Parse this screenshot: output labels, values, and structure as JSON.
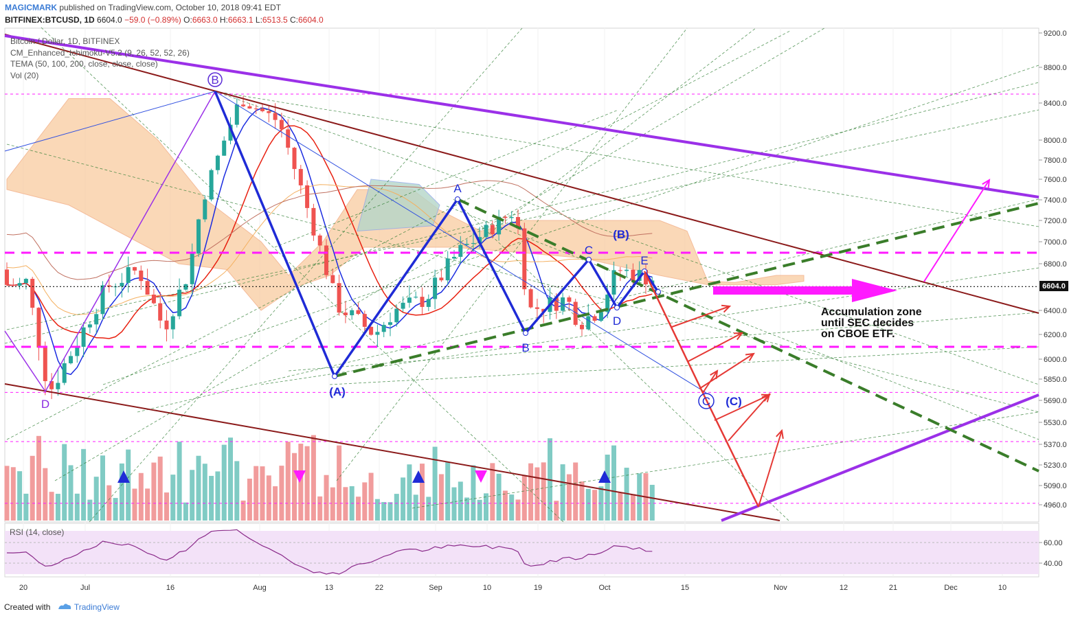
{
  "header": {
    "author": "MAGICMARK",
    "published": "published on TradingView.com, October 10, 2018 09:41 EDT",
    "symbol": "BITFINEX:BTCUSD, 1D",
    "last": "6604.0",
    "change": "−59.0 (−0.89%)",
    "o_label": "O:",
    "o_val": "6663.0",
    "h_label": "H:",
    "h_val": "6663.1",
    "l_label": "L:",
    "l_val": "6513.5",
    "c_label": "C:",
    "c_val": "6604.0"
  },
  "legend": {
    "title": "Bitcoin / Dollar, 1D, BITFINEX",
    "ichimoku": "CM_Enhanced_Ichimoku-V5.2 (9, 26, 52, 52, 26)",
    "tema": "TEMA (50, 100, 200, close, close, close)",
    "vol": "Vol (20)"
  },
  "rsi": {
    "label": "RSI (14, close)",
    "ticks": [
      "60.00",
      "40.00"
    ]
  },
  "footer": {
    "created": "Created with",
    "brand": "TradingView"
  },
  "colors": {
    "up": "#26a69a",
    "down": "#ef5350",
    "volUp": "#80cbc4",
    "volDown": "#f19c9c",
    "wave": "#1f2bd6",
    "purple": "#9b30e8",
    "magenta": "#ff1aff",
    "darkred": "#8b1a1a",
    "green": "#2e7d32",
    "red": "#e53935",
    "cloudBear": "#f8c89a",
    "cloudBull": "#b5d6c9"
  },
  "annotations": {
    "B_circle": "B",
    "D_left": "D",
    "A_paren": "(A)",
    "A_top": "A",
    "B_low": "B",
    "C_mid": "C",
    "D_mid": "D",
    "E_mid": "E",
    "B_paren": "(B)",
    "C_circle": "C",
    "C_paren": "(C)",
    "note": [
      "Accumulation zone",
      "until SEC decides",
      "on CBOE ETF."
    ]
  },
  "chart_data": {
    "type": "candlestick",
    "title": "Bitcoin / Dollar, 1D, BITFINEX",
    "current_price": 6604.0,
    "y_ticks": [
      9200,
      8800,
      8400,
      8000,
      7800,
      7600,
      7400,
      7200,
      7000,
      6800,
      6400,
      6200,
      6000,
      5850,
      5690,
      5530,
      5370,
      5230,
      5090,
      4960
    ],
    "x_ticks": [
      "20",
      "Jul",
      "16",
      "Aug",
      "13",
      "22",
      "Sep",
      "10",
      "19",
      "Oct",
      "15",
      "Nov",
      "12",
      "21",
      "Dec",
      "10"
    ],
    "key_points": [
      {
        "label": "D",
        "date": "2018-06-24",
        "price": 5750
      },
      {
        "label": "B",
        "date": "2018-07-24",
        "price": 8480
      },
      {
        "label": "(A)",
        "date": "2018-08-14",
        "price": 5860
      },
      {
        "label": "A",
        "date": "2018-09-05",
        "price": 7390
      },
      {
        "label": "B",
        "date": "2018-09-15",
        "price": 6200
      },
      {
        "label": "C",
        "date": "2018-09-28",
        "price": 6820
      },
      {
        "label": "D",
        "date": "2018-10-03",
        "price": 6450
      },
      {
        "label": "E",
        "date": "2018-10-07",
        "price": 6740
      },
      {
        "label": "(C)",
        "date": "2018-10-21",
        "price": 5700
      }
    ],
    "horizontal_levels": [
      8500,
      6900,
      6100,
      5750,
      5390,
      4970
    ],
    "rsi_levels": [
      60,
      40
    ]
  }
}
